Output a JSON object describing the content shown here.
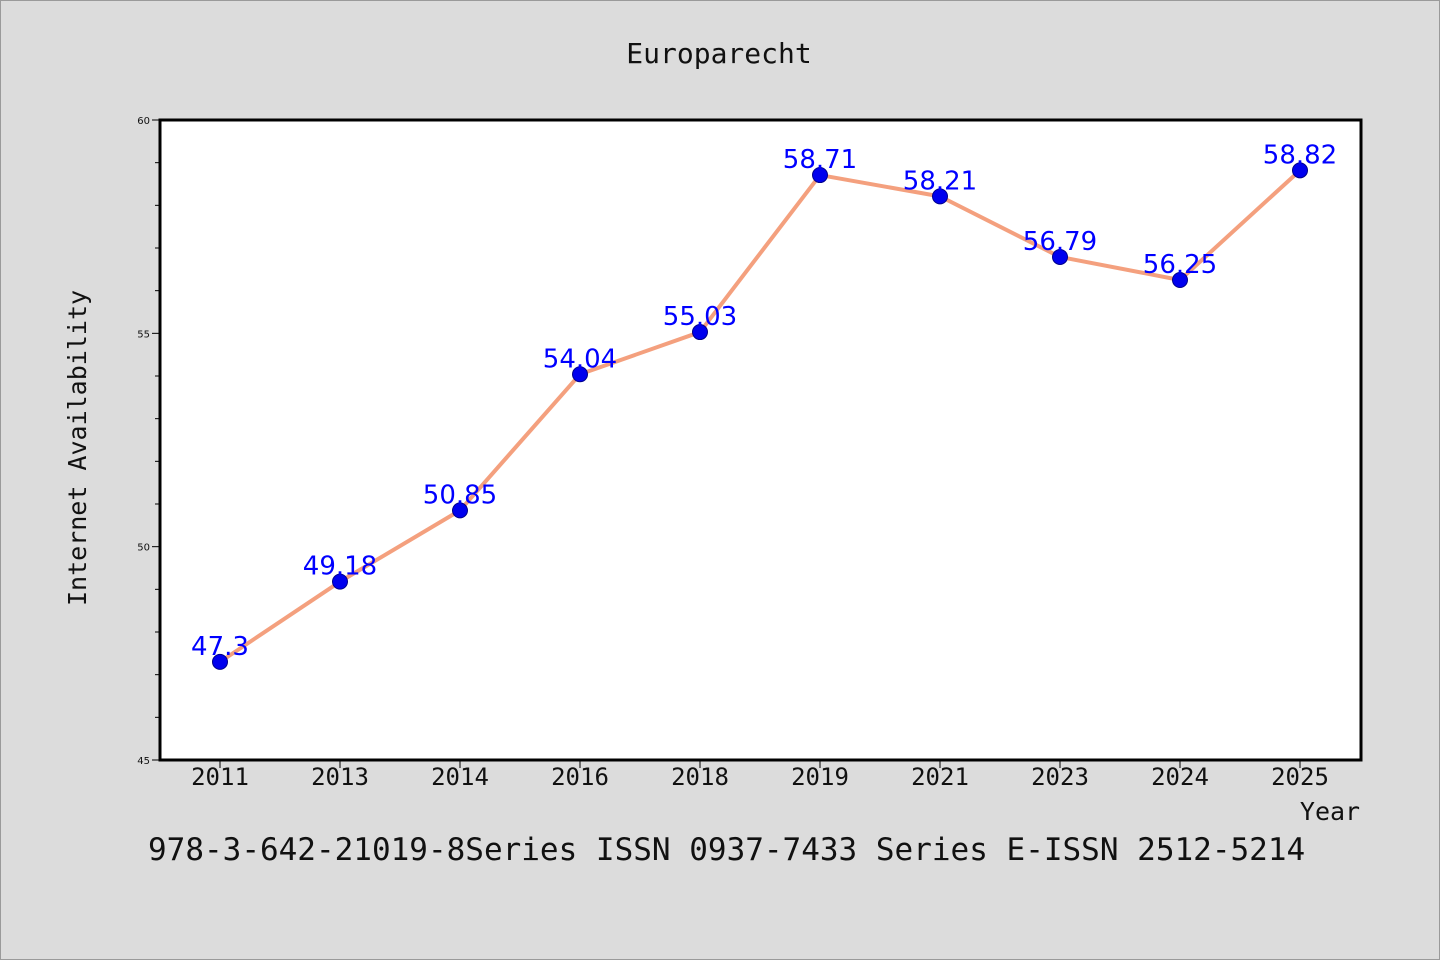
{
  "caption": "978-3-642-21019-8Series ISSN 0937-7433 Series E-ISSN 2512-5214",
  "colors": {
    "background": "#dcdcdc",
    "plot_bg": "#ffffff",
    "line": "#f4a07e",
    "marker": "#0000ee",
    "data_label": "#0000ff"
  },
  "chart_data": {
    "type": "line",
    "title": "Europarecht",
    "xlabel": "Year",
    "ylabel": "Internet Availability",
    "categories": [
      "2011",
      "2013",
      "2014",
      "2016",
      "2018",
      "2019",
      "2021",
      "2023",
      "2024",
      "2025"
    ],
    "series": [
      {
        "values": [
          47.3,
          49.18,
          50.85,
          54.04,
          55.03,
          58.71,
          58.21,
          56.79,
          56.25,
          58.82
        ],
        "labels": [
          "47.3",
          "49.18",
          "50.85",
          "54.04",
          "55.03",
          "58.71",
          "58.21",
          "56.79",
          "56.25",
          "58.82"
        ]
      }
    ],
    "ylim": [
      45,
      60
    ],
    "yticks": [
      "45",
      "50",
      "55",
      "60"
    ],
    "y_minor_step": 1,
    "grid": false,
    "legend": "none"
  }
}
